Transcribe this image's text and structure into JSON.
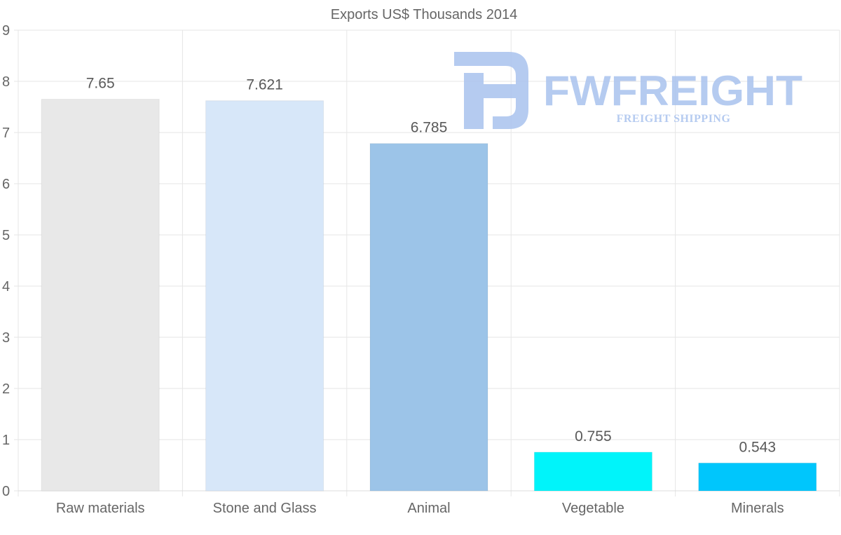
{
  "chart_data": {
    "type": "bar",
    "title": "Exports US$ Thousands 2014",
    "categories": [
      "Raw materials",
      "Stone and Glass",
      "Animal",
      "Vegetable",
      "Minerals"
    ],
    "values": [
      7.65,
      7.621,
      6.785,
      0.755,
      0.543
    ],
    "value_labels": [
      "7.65",
      "7.621",
      "6.785",
      "0.755",
      "0.543"
    ],
    "colors": [
      "#e8e8e8",
      "#d7e7f9",
      "#9cc4e8",
      "#00f4fa",
      "#00c6fc"
    ],
    "ylim": [
      0,
      9
    ],
    "yticks": [
      0,
      1,
      2,
      3,
      4,
      5,
      6,
      7,
      8,
      9
    ],
    "xlabel": "",
    "ylabel": "",
    "grid": true,
    "legend": "none"
  },
  "watermark": {
    "brand": "FWFREIGHT",
    "tagline": "FREIGHT SHIPPING",
    "color": "#a9c2ee"
  }
}
